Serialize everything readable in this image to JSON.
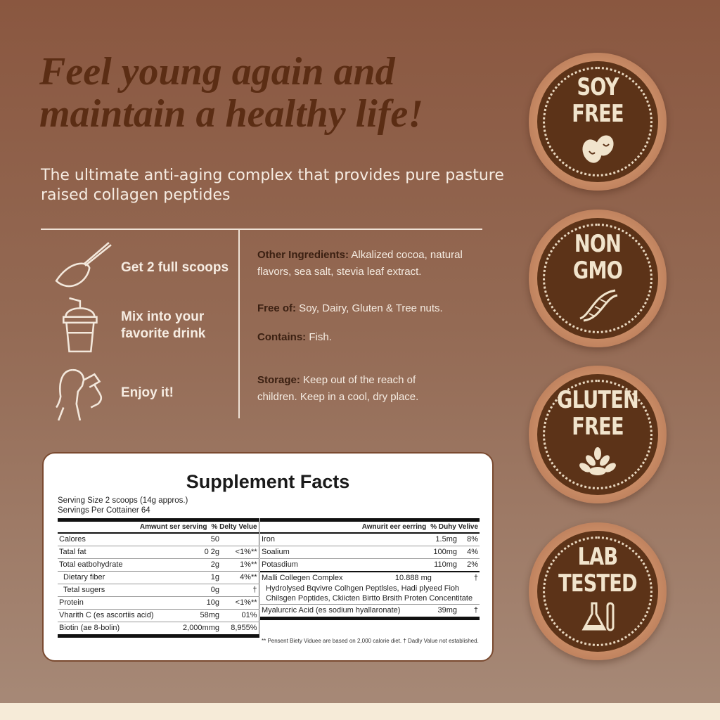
{
  "headline": [
    "Feel young again and",
    "maintain a healthy life!"
  ],
  "subtitle": "The ultimate anti-aging complex that provides pure pasture raised collagen peptides",
  "steps": [
    {
      "icon": "scoop-icon",
      "label": "Get 2 full scoops"
    },
    {
      "icon": "cup-icon",
      "label": "Mix into your favorite drink"
    },
    {
      "icon": "woman-drinking-icon",
      "label": "Enjoy it!"
    }
  ],
  "info": [
    {
      "k": "Other Ingredients:",
      "v": " Alkalized cocoa, natural flavors, sea salt, stevia leaf extract."
    },
    {
      "k": "Free of:",
      "v": " Soy, Dairy, Gluten & Tree nuts."
    },
    {
      "k": "Contains:",
      "v": " Fish."
    },
    {
      "k": "Storage:",
      "v": " Keep out of the reach of children. Keep in a cool, dry place."
    }
  ],
  "facts": {
    "title": "Supplement Facts",
    "serving_size": "Serving Size 2 scoops (14g appros.)",
    "servings": "Servings Per Cottainer 64",
    "left_header": [
      "Amwunt ser serving",
      "% Delty Velue"
    ],
    "left_rows": [
      [
        "Calores",
        "50",
        ""
      ],
      [
        "Tatal fat",
        "0 2g",
        "<1%**"
      ],
      [
        "Total eatbohydrate",
        "2g",
        "1%**"
      ],
      [
        "Dietary fiber",
        "1g",
        "4%**"
      ],
      [
        "Tetal sugers",
        "0g",
        "†"
      ],
      [
        "Protein",
        "10g",
        "<1%**"
      ],
      [
        "Vharith C (es ascortiis acid)",
        "58mg",
        "01%"
      ],
      [
        "Biotin (ae 8-bolin)",
        "2,000mmg",
        "8,955%"
      ]
    ],
    "right_header": [
      "Awnurit eer eerring",
      "% Duhy Velive"
    ],
    "right_rows": [
      [
        "Iron",
        "1.5mg",
        "8%"
      ],
      [
        "Soalium",
        "100mg",
        "4%"
      ],
      [
        "Potasdium",
        "110mg",
        "2%"
      ]
    ],
    "complex": {
      "name": "Malli Collegen Complex",
      "amount": "10.888 mg",
      "dv": "†",
      "desc": "Hydrolysed Bqvivre Colhgen Peptlsles, Hadi plyeed Fioh Chilsgen Poptides, Ckiicten Birtto Brsith Proten Concentitate"
    },
    "hyaluronic": [
      "Myalurcric Acid (es sodium hyallaronate)",
      "39mg",
      "†"
    ],
    "footnote": "** Pensent Biety Viduee are based on 2,000 calorie diet. † Dadly Value not established."
  },
  "badges": [
    {
      "text": [
        "SOY",
        "FREE"
      ],
      "icon": "beans-icon"
    },
    {
      "text": [
        "NON",
        "GMO"
      ],
      "icon": "dna-icon"
    },
    {
      "text": [
        "GLUTEN",
        "FREE"
      ],
      "icon": "wheat-icon"
    },
    {
      "text": [
        "LAB",
        "TESTED"
      ],
      "icon": "flask-icon"
    }
  ],
  "colors": {
    "headline": "#5b2d14",
    "badge_inner": "#5c3318",
    "badge_ring": "#c98c66",
    "text_light": "#f6ece2"
  }
}
